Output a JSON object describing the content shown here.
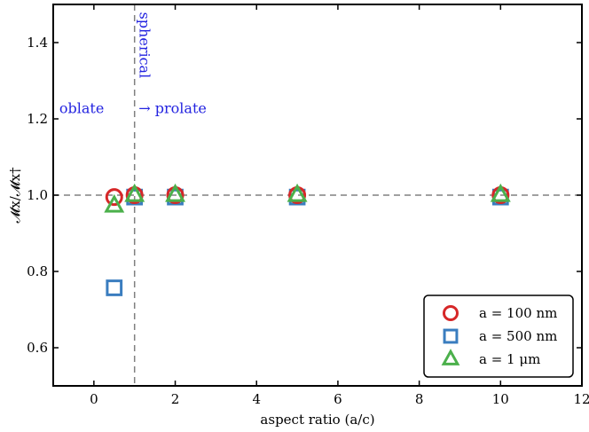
{
  "chart_data": {
    "type": "scatter",
    "xlabel": "aspect ratio (a/c)",
    "ylabel": "𝓜x/𝓜x†",
    "xlim": [
      -1,
      12
    ],
    "ylim": [
      0.5,
      1.5
    ],
    "xticks": [
      0,
      2,
      4,
      6,
      8,
      10,
      12
    ],
    "yticks": [
      0.6,
      0.8,
      1.0,
      1.2,
      1.4
    ],
    "xtick_labels": [
      "0",
      "2",
      "4",
      "6",
      "8",
      "10",
      "12"
    ],
    "ytick_labels": [
      "0.6",
      "0.8",
      "1.0",
      "1.2",
      "1.4"
    ],
    "reference_lines": {
      "horizontal_y": 1.0,
      "vertical_x": 1.0,
      "style": "dashed"
    },
    "annotations": [
      {
        "text": "spherical",
        "x": 1.0,
        "y": 1.48,
        "rotation": -90
      },
      {
        "text": "oblate",
        "x": -0.85,
        "y": 1.215
      },
      {
        "text": "→ prolate",
        "x": 1.1,
        "y": 1.215
      }
    ],
    "legend_placement": "lower-right",
    "series": [
      {
        "name": "a = 100 nm",
        "marker": "circle",
        "color": "#d62728",
        "x": [
          0.5,
          1,
          2,
          5,
          10
        ],
        "y": [
          0.995,
          1.0,
          1.0,
          1.0,
          1.0
        ]
      },
      {
        "name": "a = 500 nm",
        "marker": "square",
        "color": "#3a7dbf",
        "x": [
          0.5,
          1,
          2,
          5,
          10
        ],
        "y": [
          0.757,
          0.995,
          0.995,
          0.995,
          0.995
        ]
      },
      {
        "name": "a = 1 μm",
        "marker": "triangle",
        "color": "#4bb04b",
        "x": [
          0.5,
          1,
          2,
          5,
          10
        ],
        "y": [
          0.972,
          1.0,
          1.0,
          1.0,
          1.0
        ]
      }
    ]
  }
}
